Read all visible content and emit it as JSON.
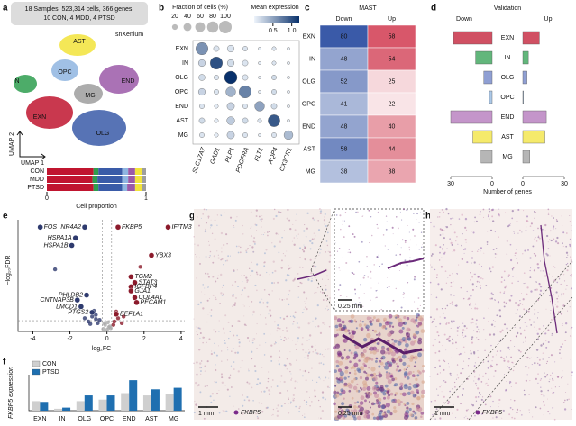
{
  "panels": [
    "a",
    "b",
    "c",
    "d",
    "e",
    "f",
    "g",
    "h"
  ],
  "chart_data": [
    {
      "type": "stacked_bar",
      "info": [
        "18 Samples, 523,314 cells, 366 genes,",
        "10 CON, 4 MDD, 4 PTSD"
      ],
      "umap_title": "snXenium",
      "umap_labels": [
        "EXN",
        "IN",
        "OLG",
        "OPC",
        "END",
        "AST",
        "MG"
      ],
      "xlabel_umap": "UMAP 1",
      "ylabel_umap": "UMAP 2",
      "categories": [
        "CON",
        "MDD",
        "PTSD"
      ],
      "series": [
        {
          "color": "#c0152f",
          "values": [
            0.47,
            0.46,
            0.47
          ]
        },
        {
          "color": "#2e9e4f",
          "values": [
            0.05,
            0.05,
            0.05
          ]
        },
        {
          "color": "#3a5ba8",
          "values": [
            0.24,
            0.25,
            0.24
          ]
        },
        {
          "color": "#8fb5e0",
          "values": [
            0.06,
            0.06,
            0.05
          ]
        },
        {
          "color": "#9b59a8",
          "values": [
            0.07,
            0.07,
            0.08
          ]
        },
        {
          "color": "#f2e33a",
          "values": [
            0.07,
            0.07,
            0.07
          ]
        },
        {
          "color": "#9e9e9e",
          "values": [
            0.04,
            0.04,
            0.04
          ]
        }
      ],
      "xlim": [
        0,
        1
      ],
      "xticks": [
        0,
        1
      ],
      "xlabel": "Cell proportion"
    },
    {
      "type": "dotplot",
      "size_title": "Fraction of cells (%)",
      "size_ticks": [
        20,
        40,
        60,
        80,
        100
      ],
      "color_title": "Mean expression",
      "color_ticks": [
        0.5,
        {
          "value": 1,
          "label": "1.0"
        }
      ],
      "clim": [
        0,
        1.2
      ],
      "cmap": [
        "#eef4fb",
        "#08306b"
      ],
      "rows": [
        "EXN",
        "IN",
        "OLG",
        "OPC",
        "END",
        "AST",
        "MG"
      ],
      "columns": [
        "SLC17A7",
        "GAD1",
        "PLP1",
        "PDGFRA",
        "FLT1",
        "AQP4",
        "CX3CR1"
      ],
      "size": [
        [
          95,
          20,
          30,
          15,
          5,
          10,
          5
        ],
        [
          30,
          95,
          30,
          20,
          5,
          10,
          5
        ],
        [
          25,
          15,
          100,
          20,
          5,
          15,
          5
        ],
        [
          30,
          15,
          60,
          95,
          5,
          15,
          5
        ],
        [
          15,
          10,
          35,
          15,
          60,
          20,
          5
        ],
        [
          20,
          10,
          40,
          20,
          10,
          90,
          5
        ],
        [
          15,
          10,
          35,
          15,
          5,
          15,
          50
        ]
      ],
      "expression": [
        [
          0.6,
          0.1,
          0.1,
          0.1,
          0.05,
          0.1,
          0.05
        ],
        [
          0.2,
          1.0,
          0.15,
          0.1,
          0.05,
          0.1,
          0.05
        ],
        [
          0.15,
          0.1,
          1.2,
          0.1,
          0.05,
          0.15,
          0.05
        ],
        [
          0.2,
          0.1,
          0.4,
          0.7,
          0.05,
          0.15,
          0.05
        ],
        [
          0.1,
          0.05,
          0.2,
          0.1,
          0.5,
          0.15,
          0.05
        ],
        [
          0.15,
          0.05,
          0.25,
          0.15,
          0.1,
          0.95,
          0.05
        ],
        [
          0.1,
          0.05,
          0.2,
          0.1,
          0.05,
          0.1,
          0.35
        ]
      ]
    },
    {
      "type": "heatmap",
      "title": "MAST",
      "columns": [
        "Down",
        "Up"
      ],
      "rows": [
        "EXN",
        "IN",
        "OLG",
        "OPC",
        "END",
        "AST",
        "MG"
      ],
      "values": [
        [
          80,
          58
        ],
        [
          48,
          54
        ],
        [
          52,
          25
        ],
        [
          41,
          22
        ],
        [
          48,
          40
        ],
        [
          58,
          44
        ],
        [
          38,
          38
        ]
      ],
      "colors": [
        "#3a5aa8",
        "#c8152f"
      ],
      "clim": [
        15,
        75
      ]
    },
    {
      "type": "diverging_bar",
      "title": "Validation",
      "down_label": "Down",
      "up_label": "Up",
      "categories": [
        "EXN",
        "IN",
        "OLG",
        "OPC",
        "END",
        "AST",
        "MG"
      ],
      "colors": [
        "#c0152f",
        "#2e9e4f",
        "#6a7fc4",
        "#8fb5e0",
        "#b071b8",
        "#f2e33a",
        "#9e9e9e"
      ],
      "down": [
        28,
        12,
        6,
        2,
        30,
        14,
        8
      ],
      "up": [
        12,
        4,
        3,
        0.5,
        17,
        16,
        5
      ],
      "xlim": [
        0,
        30
      ],
      "down_ticks": [
        30,
        0
      ],
      "up_ticks": [
        0,
        30
      ],
      "xlabel": "Number of genes"
    },
    {
      "type": "scatter",
      "xlabel": "log₂FC",
      "ylabel": "−log₁₀FDR",
      "xlim": [
        -4.8,
        4.2
      ],
      "xticks": [
        -4,
        -2,
        0,
        2,
        4
      ],
      "ylim": [
        0,
        13.5
      ],
      "thresholds": {
        "x": [
          -0.25,
          0.25
        ],
        "y": 1.3
      },
      "series": [
        {
          "color": "#2e3a6e",
          "x": [
            -0.6,
            -0.8,
            -1.0,
            -0.7,
            -0.5,
            -1.2,
            -0.9,
            -0.4,
            -0.6,
            -2.8
          ],
          "y": [
            1.5,
            1.8,
            1.2,
            2.5,
            1.0,
            1.6,
            0.9,
            1.4,
            2.0,
            7.5
          ]
        },
        {
          "color": "#8b1a2b",
          "x": [
            0.4,
            0.6,
            0.8,
            0.5,
            0.9,
            0.35,
            1.8
          ],
          "y": [
            1.2,
            1.6,
            1.0,
            2.4,
            1.8,
            0.8,
            7.8
          ]
        },
        {
          "color": "#aaaaaa",
          "x": [
            -0.2,
            0.1,
            -0.1,
            0.2,
            0,
            -0.15,
            0.15,
            0.05
          ],
          "y": [
            0.3,
            0.5,
            0.8,
            0.4,
            0.2,
            1.0,
            0.6,
            1.1
          ]
        }
      ],
      "labeled": {
        "genes": [
          "FOS",
          "NR4A2",
          "FKBP5",
          "IFITM3",
          "HSPA1A",
          "HSPA1B",
          "YBX3",
          "TGM2",
          "STAT3",
          "IGFBP4",
          "GJA1",
          "COL4A1",
          "PECAM1",
          "EEF1A1",
          "PHLDB2",
          "CNTNAP3B",
          "LMCD1",
          "PTGS2"
        ],
        "x": [
          -3.6,
          -1.2,
          0.6,
          3.3,
          -1.7,
          -1.9,
          2.4,
          1.3,
          1.5,
          1.3,
          1.3,
          1.5,
          1.6,
          0.5,
          -1.1,
          -1.6,
          -1.4,
          -0.8
        ],
        "y": [
          12.6,
          12.6,
          12.6,
          12.6,
          11.3,
          10.4,
          9.2,
          6.6,
          5.9,
          5.4,
          4.9,
          4.1,
          3.5,
          2.1,
          4.4,
          3.8,
          3.0,
          2.3
        ]
      }
    },
    {
      "type": "grouped_bar",
      "ylabel": "FKBP5 expression",
      "categories": [
        "EXN",
        "IN",
        "OLG",
        "OPC",
        "END",
        "AST",
        "MG"
      ],
      "series": [
        {
          "name": "CON",
          "color": "#cfcfcf",
          "values": [
            0.05,
            0.01,
            0.05,
            0.058,
            0.092,
            0.08,
            0.085
          ]
        },
        {
          "name": "PTSD",
          "color": "#1f6fb0",
          "values": [
            0.046,
            0.016,
            0.08,
            0.08,
            0.16,
            0.112,
            0.12
          ]
        }
      ],
      "ylim": [
        0,
        0.17
      ]
    }
  ],
  "images": [
    {
      "scale_bar": "1 mm",
      "inset_scale": "0.25 mm",
      "zoom_scale": "0.25 mm",
      "gene": "FKBP5"
    },
    {
      "scale_bar": "1 mm",
      "gene": "FKBP5"
    }
  ]
}
